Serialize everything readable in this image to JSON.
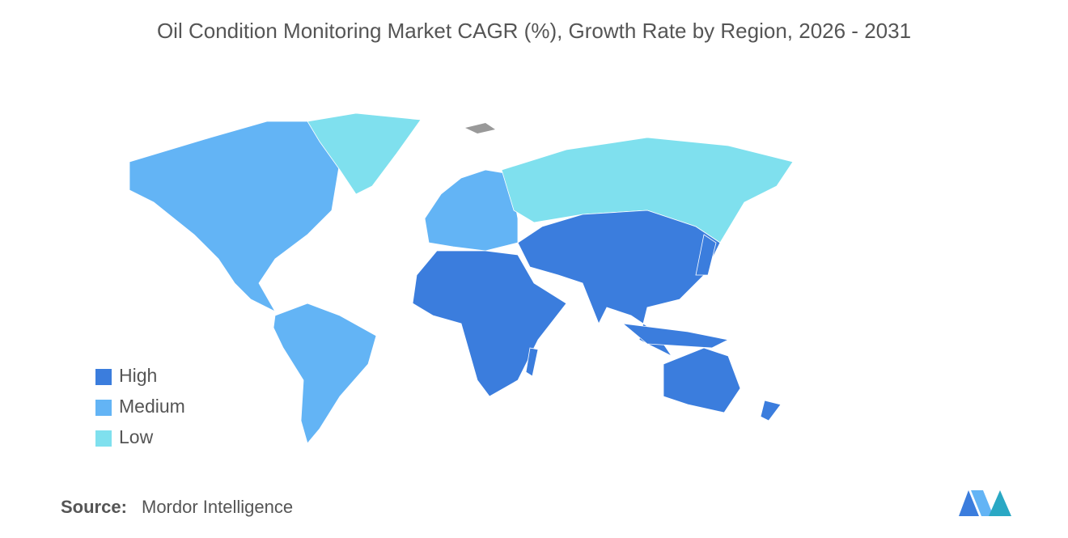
{
  "title": "Oil Condition Monitoring Market CAGR (%), Growth Rate by Region, 2026 - 2031",
  "legend": [
    {
      "label": "High",
      "color": "#3b7ddd"
    },
    {
      "label": "Medium",
      "color": "#63b4f5"
    },
    {
      "label": "Low",
      "color": "#7fe0ee"
    }
  ],
  "source": {
    "label": "Source:",
    "text": "Mordor Intelligence"
  }
}
